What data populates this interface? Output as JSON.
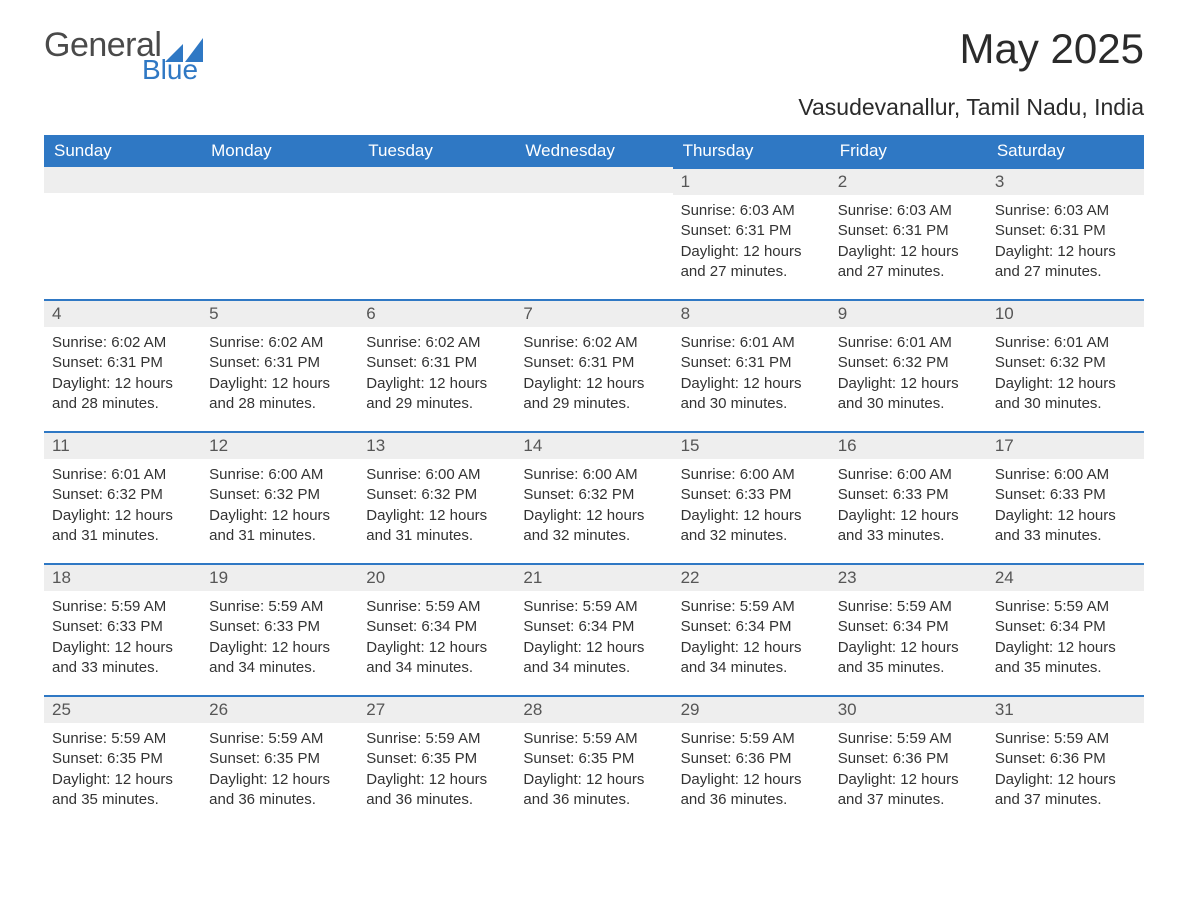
{
  "brand": {
    "line1": "General",
    "line2": "Blue"
  },
  "colors": {
    "header_bg": "#2f78c4",
    "header_text": "#ffffff",
    "daynum_bg": "#eeeeee",
    "daynum_border": "#2f78c4",
    "text": "#333333",
    "title": "#2b2b2b"
  },
  "header": {
    "title": "May 2025",
    "location": "Vasudevanallur, Tamil Nadu, India"
  },
  "daysOfWeek": [
    "Sunday",
    "Monday",
    "Tuesday",
    "Wednesday",
    "Thursday",
    "Friday",
    "Saturday"
  ],
  "firstWeekday": 4,
  "daysInMonth": 31,
  "days": {
    "1": {
      "sunrise": "6:03 AM",
      "sunset": "6:31 PM",
      "daylight": "12 hours and 27 minutes."
    },
    "2": {
      "sunrise": "6:03 AM",
      "sunset": "6:31 PM",
      "daylight": "12 hours and 27 minutes."
    },
    "3": {
      "sunrise": "6:03 AM",
      "sunset": "6:31 PM",
      "daylight": "12 hours and 27 minutes."
    },
    "4": {
      "sunrise": "6:02 AM",
      "sunset": "6:31 PM",
      "daylight": "12 hours and 28 minutes."
    },
    "5": {
      "sunrise": "6:02 AM",
      "sunset": "6:31 PM",
      "daylight": "12 hours and 28 minutes."
    },
    "6": {
      "sunrise": "6:02 AM",
      "sunset": "6:31 PM",
      "daylight": "12 hours and 29 minutes."
    },
    "7": {
      "sunrise": "6:02 AM",
      "sunset": "6:31 PM",
      "daylight": "12 hours and 29 minutes."
    },
    "8": {
      "sunrise": "6:01 AM",
      "sunset": "6:31 PM",
      "daylight": "12 hours and 30 minutes."
    },
    "9": {
      "sunrise": "6:01 AM",
      "sunset": "6:32 PM",
      "daylight": "12 hours and 30 minutes."
    },
    "10": {
      "sunrise": "6:01 AM",
      "sunset": "6:32 PM",
      "daylight": "12 hours and 30 minutes."
    },
    "11": {
      "sunrise": "6:01 AM",
      "sunset": "6:32 PM",
      "daylight": "12 hours and 31 minutes."
    },
    "12": {
      "sunrise": "6:00 AM",
      "sunset": "6:32 PM",
      "daylight": "12 hours and 31 minutes."
    },
    "13": {
      "sunrise": "6:00 AM",
      "sunset": "6:32 PM",
      "daylight": "12 hours and 31 minutes."
    },
    "14": {
      "sunrise": "6:00 AM",
      "sunset": "6:32 PM",
      "daylight": "12 hours and 32 minutes."
    },
    "15": {
      "sunrise": "6:00 AM",
      "sunset": "6:33 PM",
      "daylight": "12 hours and 32 minutes."
    },
    "16": {
      "sunrise": "6:00 AM",
      "sunset": "6:33 PM",
      "daylight": "12 hours and 33 minutes."
    },
    "17": {
      "sunrise": "6:00 AM",
      "sunset": "6:33 PM",
      "daylight": "12 hours and 33 minutes."
    },
    "18": {
      "sunrise": "5:59 AM",
      "sunset": "6:33 PM",
      "daylight": "12 hours and 33 minutes."
    },
    "19": {
      "sunrise": "5:59 AM",
      "sunset": "6:33 PM",
      "daylight": "12 hours and 34 minutes."
    },
    "20": {
      "sunrise": "5:59 AM",
      "sunset": "6:34 PM",
      "daylight": "12 hours and 34 minutes."
    },
    "21": {
      "sunrise": "5:59 AM",
      "sunset": "6:34 PM",
      "daylight": "12 hours and 34 minutes."
    },
    "22": {
      "sunrise": "5:59 AM",
      "sunset": "6:34 PM",
      "daylight": "12 hours and 34 minutes."
    },
    "23": {
      "sunrise": "5:59 AM",
      "sunset": "6:34 PM",
      "daylight": "12 hours and 35 minutes."
    },
    "24": {
      "sunrise": "5:59 AM",
      "sunset": "6:34 PM",
      "daylight": "12 hours and 35 minutes."
    },
    "25": {
      "sunrise": "5:59 AM",
      "sunset": "6:35 PM",
      "daylight": "12 hours and 35 minutes."
    },
    "26": {
      "sunrise": "5:59 AM",
      "sunset": "6:35 PM",
      "daylight": "12 hours and 36 minutes."
    },
    "27": {
      "sunrise": "5:59 AM",
      "sunset": "6:35 PM",
      "daylight": "12 hours and 36 minutes."
    },
    "28": {
      "sunrise": "5:59 AM",
      "sunset": "6:35 PM",
      "daylight": "12 hours and 36 minutes."
    },
    "29": {
      "sunrise": "5:59 AM",
      "sunset": "6:36 PM",
      "daylight": "12 hours and 36 minutes."
    },
    "30": {
      "sunrise": "5:59 AM",
      "sunset": "6:36 PM",
      "daylight": "12 hours and 37 minutes."
    },
    "31": {
      "sunrise": "5:59 AM",
      "sunset": "6:36 PM",
      "daylight": "12 hours and 37 minutes."
    }
  },
  "labels": {
    "sunrise": "Sunrise:",
    "sunset": "Sunset:",
    "daylight": "Daylight:"
  }
}
